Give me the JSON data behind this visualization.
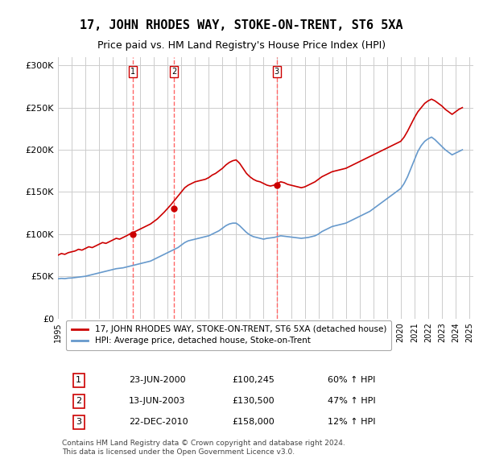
{
  "title": "17, JOHN RHODES WAY, STOKE-ON-TRENT, ST6 5XA",
  "subtitle": "Price paid vs. HM Land Registry's House Price Index (HPI)",
  "ylabel": "",
  "ylim": [
    0,
    310000
  ],
  "yticks": [
    0,
    50000,
    100000,
    150000,
    200000,
    250000,
    300000
  ],
  "ytick_labels": [
    "£0",
    "£50K",
    "£100K",
    "£150K",
    "£200K",
    "£250K",
    "£300K"
  ],
  "red_color": "#cc0000",
  "blue_color": "#6699cc",
  "vline_color": "#ff6666",
  "background_color": "#ffffff",
  "grid_color": "#cccccc",
  "sale_dates": [
    "2000-06-23",
    "2003-06-13",
    "2010-12-22"
  ],
  "sale_prices": [
    100245,
    130500,
    158000
  ],
  "sale_labels": [
    "1",
    "2",
    "3"
  ],
  "legend_label_red": "17, JOHN RHODES WAY, STOKE-ON-TRENT, ST6 5XA (detached house)",
  "legend_label_blue": "HPI: Average price, detached house, Stoke-on-Trent",
  "table_rows": [
    [
      "1",
      "23-JUN-2000",
      "£100,245",
      "60% ↑ HPI"
    ],
    [
      "2",
      "13-JUN-2003",
      "£130,500",
      "47% ↑ HPI"
    ],
    [
      "3",
      "22-DEC-2010",
      "£158,000",
      "12% ↑ HPI"
    ]
  ],
  "footnote": "Contains HM Land Registry data © Crown copyright and database right 2024.\nThis data is licensed under the Open Government Licence v3.0.",
  "title_fontsize": 11,
  "subtitle_fontsize": 9,
  "tick_fontsize": 8,
  "hpi_years": [
    1995,
    1996,
    1997,
    1998,
    1999,
    2000,
    2001,
    2002,
    2003,
    2004,
    2005,
    2006,
    2007,
    2008,
    2009,
    2010,
    2011,
    2012,
    2013,
    2014,
    2015,
    2016,
    2017,
    2018,
    2019,
    2020,
    2021,
    2022,
    2023,
    2024,
    2025
  ],
  "hpi_months": 12,
  "red_line_data_x": [
    1995.0,
    1995.25,
    1995.5,
    1995.75,
    1996.0,
    1996.25,
    1996.5,
    1996.75,
    1997.0,
    1997.25,
    1997.5,
    1997.75,
    1998.0,
    1998.25,
    1998.5,
    1998.75,
    1999.0,
    1999.25,
    1999.5,
    1999.75,
    2000.0,
    2000.25,
    2000.5,
    2000.75,
    2001.0,
    2001.25,
    2001.5,
    2001.75,
    2002.0,
    2002.25,
    2002.5,
    2002.75,
    2003.0,
    2003.25,
    2003.5,
    2003.75,
    2004.0,
    2004.25,
    2004.5,
    2004.75,
    2005.0,
    2005.25,
    2005.5,
    2005.75,
    2006.0,
    2006.25,
    2006.5,
    2006.75,
    2007.0,
    2007.25,
    2007.5,
    2007.75,
    2008.0,
    2008.25,
    2008.5,
    2008.75,
    2009.0,
    2009.25,
    2009.5,
    2009.75,
    2010.0,
    2010.25,
    2010.5,
    2010.75,
    2011.0,
    2011.25,
    2011.5,
    2011.75,
    2012.0,
    2012.25,
    2012.5,
    2012.75,
    2013.0,
    2013.25,
    2013.5,
    2013.75,
    2014.0,
    2014.25,
    2014.5,
    2014.75,
    2015.0,
    2015.25,
    2015.5,
    2015.75,
    2016.0,
    2016.25,
    2016.5,
    2016.75,
    2017.0,
    2017.25,
    2017.5,
    2017.75,
    2018.0,
    2018.25,
    2018.5,
    2018.75,
    2019.0,
    2019.25,
    2019.5,
    2019.75,
    2020.0,
    2020.25,
    2020.5,
    2020.75,
    2021.0,
    2021.25,
    2021.5,
    2021.75,
    2022.0,
    2022.25,
    2022.5,
    2022.75,
    2023.0,
    2023.25,
    2023.5,
    2023.75,
    2024.0,
    2024.25,
    2024.5
  ],
  "red_line_data_y": [
    75000,
    77000,
    76000,
    78000,
    79000,
    80000,
    82000,
    81000,
    83000,
    85000,
    84000,
    86000,
    88000,
    90000,
    89000,
    91000,
    93000,
    95000,
    94000,
    96000,
    98000,
    100245,
    102000,
    104000,
    106000,
    108000,
    110000,
    112000,
    115000,
    118000,
    122000,
    126000,
    130500,
    135000,
    140000,
    145000,
    150000,
    155000,
    158000,
    160000,
    162000,
    163000,
    164000,
    165000,
    167000,
    170000,
    172000,
    175000,
    178000,
    182000,
    185000,
    187000,
    188000,
    184000,
    178000,
    172000,
    168000,
    165000,
    163000,
    162000,
    160000,
    158000,
    157000,
    158000,
    160000,
    162000,
    161000,
    159000,
    158000,
    157000,
    156000,
    155000,
    156000,
    158000,
    160000,
    162000,
    165000,
    168000,
    170000,
    172000,
    174000,
    175000,
    176000,
    177000,
    178000,
    180000,
    182000,
    184000,
    186000,
    188000,
    190000,
    192000,
    194000,
    196000,
    198000,
    200000,
    202000,
    204000,
    206000,
    208000,
    210000,
    215000,
    222000,
    230000,
    238000,
    245000,
    250000,
    255000,
    258000,
    260000,
    258000,
    255000,
    252000,
    248000,
    245000,
    242000,
    245000,
    248000,
    250000
  ],
  "blue_line_data_x": [
    1995.0,
    1995.25,
    1995.5,
    1995.75,
    1996.0,
    1996.25,
    1996.5,
    1996.75,
    1997.0,
    1997.25,
    1997.5,
    1997.75,
    1998.0,
    1998.25,
    1998.5,
    1998.75,
    1999.0,
    1999.25,
    1999.5,
    1999.75,
    2000.0,
    2000.25,
    2000.5,
    2000.75,
    2001.0,
    2001.25,
    2001.5,
    2001.75,
    2002.0,
    2002.25,
    2002.5,
    2002.75,
    2003.0,
    2003.25,
    2003.5,
    2003.75,
    2004.0,
    2004.25,
    2004.5,
    2004.75,
    2005.0,
    2005.25,
    2005.5,
    2005.75,
    2006.0,
    2006.25,
    2006.5,
    2006.75,
    2007.0,
    2007.25,
    2007.5,
    2007.75,
    2008.0,
    2008.25,
    2008.5,
    2008.75,
    2009.0,
    2009.25,
    2009.5,
    2009.75,
    2010.0,
    2010.25,
    2010.5,
    2010.75,
    2011.0,
    2011.25,
    2011.5,
    2011.75,
    2012.0,
    2012.25,
    2012.5,
    2012.75,
    2013.0,
    2013.25,
    2013.5,
    2013.75,
    2014.0,
    2014.25,
    2014.5,
    2014.75,
    2015.0,
    2015.25,
    2015.5,
    2015.75,
    2016.0,
    2016.25,
    2016.5,
    2016.75,
    2017.0,
    2017.25,
    2017.5,
    2017.75,
    2018.0,
    2018.25,
    2018.5,
    2018.75,
    2019.0,
    2019.25,
    2019.5,
    2019.75,
    2020.0,
    2020.25,
    2020.5,
    2020.75,
    2021.0,
    2021.25,
    2021.5,
    2021.75,
    2022.0,
    2022.25,
    2022.5,
    2022.75,
    2023.0,
    2023.25,
    2023.5,
    2023.75,
    2024.0,
    2024.25,
    2024.5
  ],
  "blue_line_data_y": [
    47000,
    47500,
    47200,
    47800,
    48000,
    48500,
    49000,
    49500,
    50000,
    51000,
    52000,
    53000,
    54000,
    55000,
    56000,
    57000,
    58000,
    59000,
    59500,
    60000,
    61000,
    62000,
    63000,
    64000,
    65000,
    66000,
    67000,
    68000,
    70000,
    72000,
    74000,
    76000,
    78000,
    80000,
    82000,
    84000,
    87000,
    90000,
    92000,
    93000,
    94000,
    95000,
    96000,
    97000,
    98000,
    100000,
    102000,
    104000,
    107000,
    110000,
    112000,
    113000,
    113000,
    110000,
    106000,
    102000,
    99000,
    97000,
    96000,
    95000,
    94000,
    95000,
    95500,
    96000,
    97000,
    98000,
    97500,
    97000,
    96500,
    96000,
    95500,
    95000,
    95500,
    96000,
    97000,
    98000,
    100000,
    103000,
    105000,
    107000,
    109000,
    110000,
    111000,
    112000,
    113000,
    115000,
    117000,
    119000,
    121000,
    123000,
    125000,
    127000,
    130000,
    133000,
    136000,
    139000,
    142000,
    145000,
    148000,
    151000,
    154000,
    160000,
    168000,
    178000,
    188000,
    198000,
    205000,
    210000,
    213000,
    215000,
    212000,
    208000,
    204000,
    200000,
    197000,
    194000,
    196000,
    198000,
    200000
  ]
}
